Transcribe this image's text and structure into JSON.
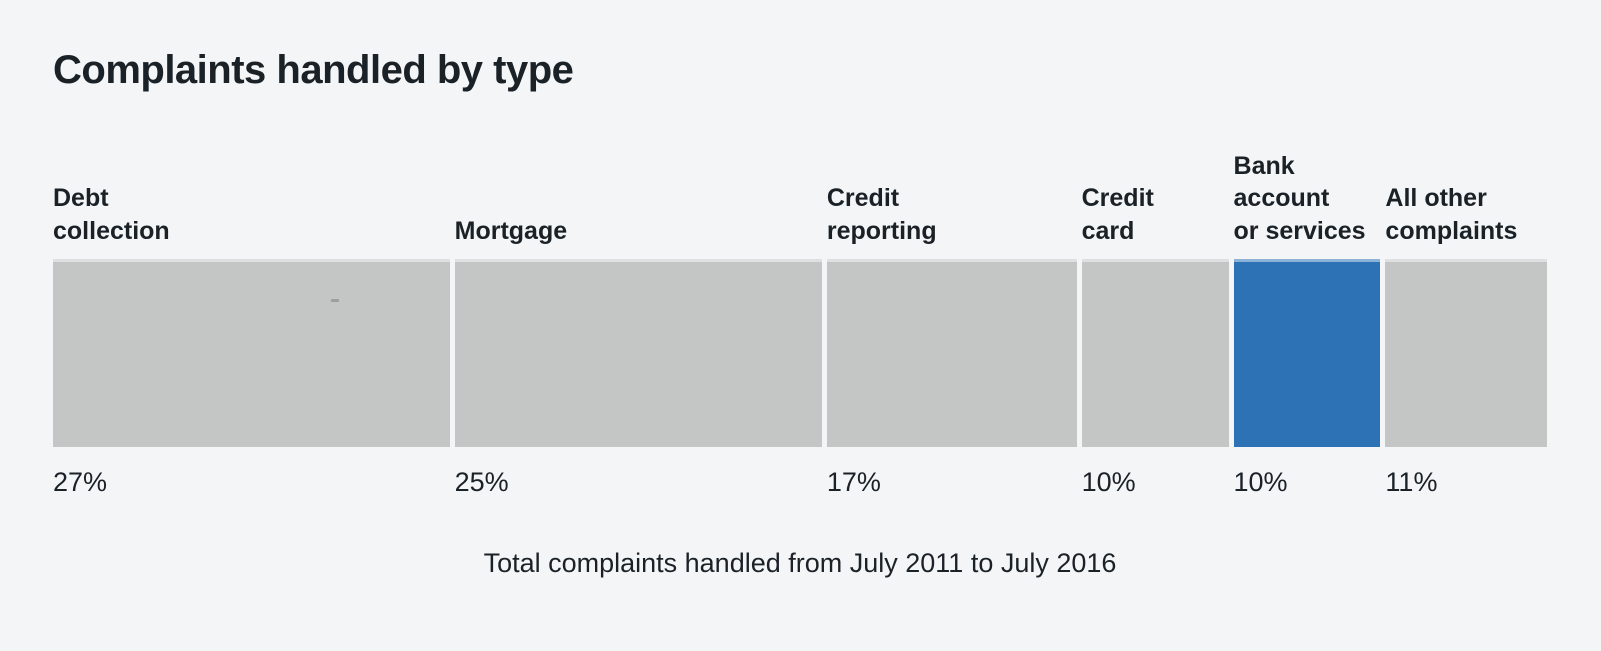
{
  "page": {
    "background": "#f4f5f7",
    "text_color": "#1a2127"
  },
  "chart_data": {
    "type": "bar",
    "orientation": "horizontal-segmented",
    "title": "Complaints handled by type",
    "caption": "Total complaints handled from July 2011 to July 2016",
    "categories": [
      "Debt collection",
      "Mortgage",
      "Credit reporting",
      "Credit card",
      "Bank account or services",
      "All other complaints"
    ],
    "values": [
      27,
      25,
      17,
      10,
      10,
      11
    ],
    "unit": "%",
    "highlighted_index": 4,
    "legend": "none",
    "grid": false,
    "axes": "none",
    "segments": [
      {
        "label": "Debt\ncollection",
        "value": 27,
        "value_label": "27%"
      },
      {
        "label": "Mortgage",
        "value": 25,
        "value_label": "25%"
      },
      {
        "label": "Credit\nreporting",
        "value": 17,
        "value_label": "17%"
      },
      {
        "label": "Credit\ncard",
        "value": 10,
        "value_label": "10%"
      },
      {
        "label": "Bank\naccount\nor services",
        "value": 10,
        "value_label": "10%"
      },
      {
        "label": "All other\ncomplaints",
        "value": 11,
        "value_label": "11%"
      }
    ],
    "colors": {
      "segment_default": "#c4c6c6",
      "segment_highlight": "#2e72b6",
      "segment_top_edge": "rgba(255,255,255,0.45)",
      "stray_mark": "#9aa09f"
    }
  }
}
